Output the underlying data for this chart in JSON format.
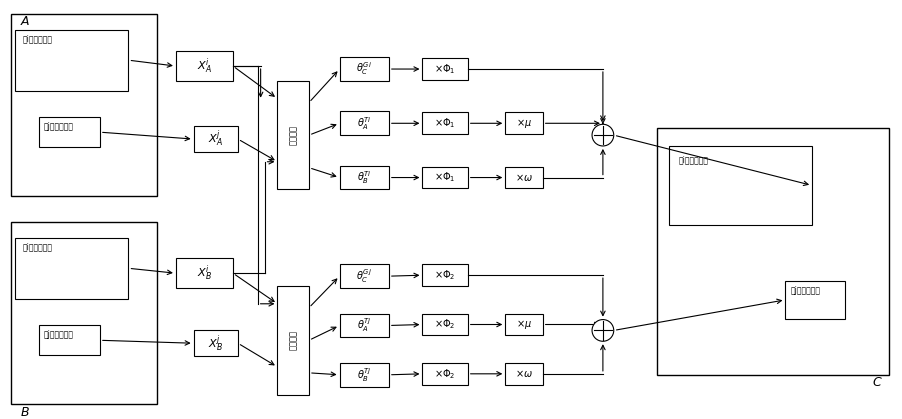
{
  "bg_color": "#ffffff",
  "labels": {
    "A": "A",
    "B": "B",
    "C": "C",
    "block_i": "第i个矩阵子块",
    "block_j": "第j个矩阵子块",
    "XAi": "$X_A^i$",
    "XAj": "$X_A^j$",
    "XBi": "$X_B^i$",
    "XBj": "$X_B^j$",
    "sparse": "稀疏表示",
    "thetaCGi": "$\\theta_C^{Gi}$",
    "thetaATi": "$\\theta_A^{Ti}$",
    "thetaBTi": "$\\theta_B^{Ti}$",
    "thetaCGj": "$\\theta_C^{Gj}$",
    "thetaATj": "$\\theta_A^{Tj}$",
    "thetaBTj": "$\\theta_B^{Tj}$",
    "xPhi1": "$\\times\\Phi_1$",
    "xPhi2": "$\\times\\Phi_2$",
    "xmu": "$\\times\\mu$",
    "xomega": "$\\times\\omega$"
  },
  "figsize": [
    9.02,
    4.19
  ],
  "dpi": 100
}
